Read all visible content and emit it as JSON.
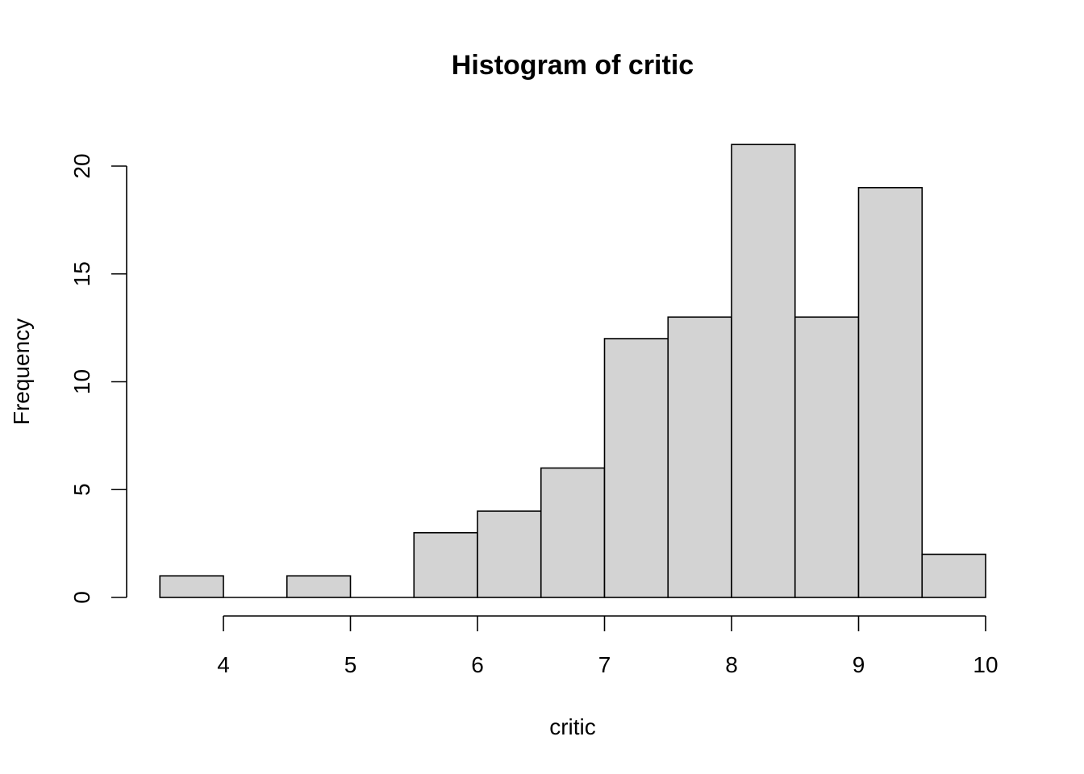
{
  "chart_data": {
    "type": "histogram",
    "title": "Histogram of critic",
    "xlabel": "critic",
    "ylabel": "Frequency",
    "bin_edges": [
      3.5,
      4.0,
      4.5,
      5.0,
      5.5,
      6.0,
      6.5,
      7.0,
      7.5,
      8.0,
      8.5,
      9.0,
      9.5,
      10.0
    ],
    "counts": [
      1,
      0,
      1,
      0,
      3,
      4,
      6,
      12,
      13,
      21,
      13,
      19,
      2
    ],
    "x_ticks": [
      4,
      5,
      6,
      7,
      8,
      9,
      10
    ],
    "y_ticks": [
      0,
      5,
      10,
      15,
      20
    ],
    "xlim": [
      4,
      10
    ],
    "ylim": [
      0,
      20
    ],
    "grid": false,
    "colors": {
      "bar_fill": "#d3d3d3",
      "bar_stroke": "#000000"
    }
  }
}
